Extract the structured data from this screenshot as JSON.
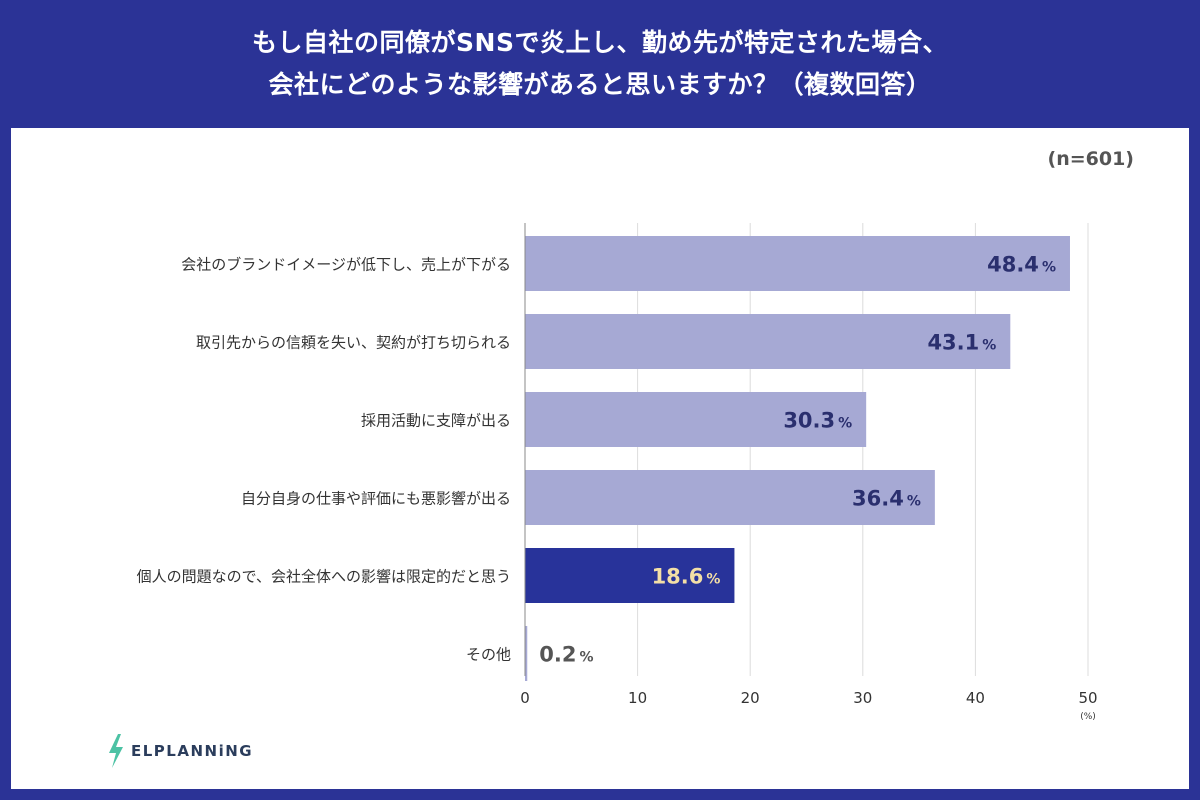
{
  "header": {
    "title_line1": "もし自社の同僚がSNSで炎上し、勤め先が特定された場合、",
    "title_line2": "会社にどのような影響があると思いますか？（複数回答）"
  },
  "sample_size": "(n=601)",
  "logo": {
    "text": "ELPLANNiNG",
    "icon": "lightning-bolt-icon"
  },
  "colors": {
    "background": "#2b3396",
    "bar_default": "#a6a9d4",
    "bar_highlight": "#28339a",
    "value_default": "#2a2f6e",
    "value_highlight": "#f3dfa6",
    "grid": "#dcdcdc"
  },
  "chart_data": {
    "type": "bar",
    "orientation": "horizontal",
    "categories": [
      "会社のブランドイメージが低下し、売上が下がる",
      "取引先からの信頼を失い、契約が打ち切られる",
      "採用活動に支障が出る",
      "自分自身の仕事や評価にも悪影響が出る",
      "個人の問題なので、会社全体への影響は限定的だと思う",
      "その他"
    ],
    "values": [
      48.4,
      43.1,
      30.3,
      36.4,
      18.6,
      0.2
    ],
    "value_labels": [
      "48.4",
      "43.1",
      "30.3",
      "36.4",
      "18.6",
      "0.2"
    ],
    "value_unit": "%",
    "highlight_index": 4,
    "xlim": [
      0,
      50
    ],
    "xticks": [
      0,
      10,
      20,
      30,
      40,
      50
    ],
    "xunit": "(%)",
    "grid": true
  }
}
